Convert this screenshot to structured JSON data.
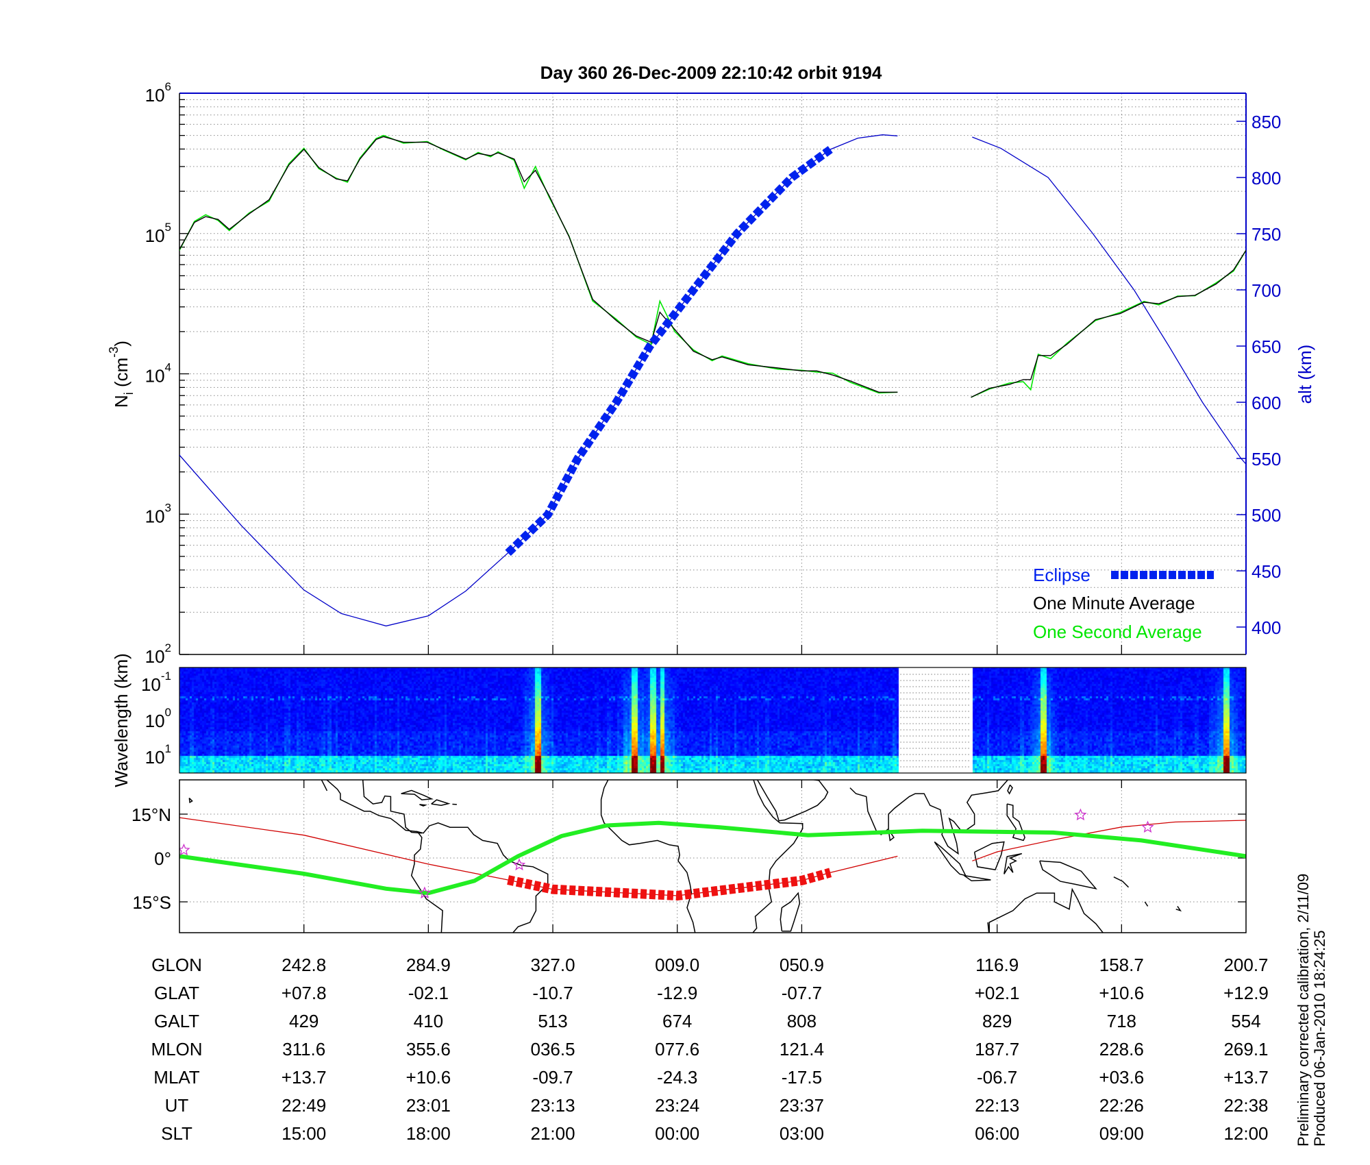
{
  "title": "Day 360  26-Dec-2009 22:10:42   orbit 9194",
  "side_notes": [
    "Preliminary corrected calibration, 2/11/09",
    "Produced 06-Jan-2010 18:24:25"
  ],
  "colors": {
    "one_minute": "#000000",
    "one_second": "#00e600",
    "altitude": "#0000c8",
    "eclipse": "#0022ee",
    "track": "#d00000",
    "track_eclipse": "#ee1111",
    "dip_equator": "#22ee22",
    "stars": "#cc33cc",
    "right_axis": "#0000c8"
  },
  "x_ticks": [
    1,
    2,
    3,
    4,
    5,
    6.57,
    7.57,
    8.57
  ],
  "chart_data": [
    {
      "type": "line",
      "ylabel": {
        "base": "N",
        "sub": "i",
        "rest": " (cm",
        "exp": "-3",
        "close": ")"
      },
      "yscale": "log",
      "ylim": [
        100,
        1000000
      ],
      "yticks": [
        {
          "m": "10",
          "e": "6"
        },
        {
          "m": "10",
          "e": "5"
        },
        {
          "m": "10",
          "e": "4"
        },
        {
          "m": "10",
          "e": "3"
        },
        {
          "m": "10",
          "e": "2"
        }
      ],
      "y2label": "alt (km)",
      "y2lim": [
        376,
        875
      ],
      "y2ticks": [
        "850",
        "800",
        "750",
        "700",
        "650",
        "600",
        "550",
        "500",
        "450",
        "400"
      ],
      "grid": true,
      "legend": {
        "placement": "bottom-right",
        "entries": [
          "Eclipse",
          "One Minute Average",
          "One Second Average"
        ]
      },
      "series": [
        {
          "name": "One Minute Average",
          "segments": [
            [
              [
                0,
                77000
              ],
              [
                0.12,
                120000
              ],
              [
                0.21,
                132000
              ],
              [
                0.31,
                126000
              ],
              [
                0.4,
                107000
              ],
              [
                0.56,
                138000
              ],
              [
                0.72,
                174000
              ],
              [
                0.88,
                309000
              ],
              [
                1.0,
                398000
              ],
              [
                1.12,
                295000
              ],
              [
                1.26,
                245000
              ],
              [
                1.35,
                237000
              ],
              [
                1.45,
                339000
              ],
              [
                1.58,
                468000
              ],
              [
                1.64,
                490000
              ],
              [
                1.8,
                447000
              ],
              [
                1.99,
                447000
              ],
              [
                2.12,
                398000
              ],
              [
                2.3,
                339000
              ],
              [
                2.4,
                372000
              ],
              [
                2.5,
                359000
              ],
              [
                2.56,
                376000
              ],
              [
                2.69,
                339000
              ],
              [
                2.77,
                234000
              ],
              [
                2.86,
                282000
              ],
              [
                2.97,
                186000
              ],
              [
                3.13,
                95000
              ],
              [
                3.32,
                33900
              ],
              [
                3.51,
                24000
              ],
              [
                3.67,
                18600
              ],
              [
                3.79,
                16800
              ],
              [
                3.86,
                27500
              ],
              [
                3.98,
                20700
              ],
              [
                4.13,
                14500
              ],
              [
                4.28,
                12600
              ],
              [
                4.36,
                13200
              ],
              [
                4.57,
                11600
              ],
              [
                4.81,
                11000
              ],
              [
                5.0,
                10500
              ],
              [
                5.12,
                10500
              ],
              [
                5.25,
                9800
              ],
              [
                5.39,
                8900
              ],
              [
                5.62,
                7400
              ],
              [
                5.77,
                7400
              ]
            ],
            [
              [
                6.36,
                6800
              ],
              [
                6.51,
                7900
              ],
              [
                6.67,
                8400
              ],
              [
                6.78,
                9100
              ],
              [
                6.84,
                9100
              ],
              [
                6.9,
                13500
              ],
              [
                7.0,
                13500
              ],
              [
                7.13,
                16200
              ],
              [
                7.36,
                24300
              ],
              [
                7.56,
                26900
              ],
              [
                7.75,
                32400
              ],
              [
                7.87,
                31600
              ],
              [
                8.02,
                35500
              ],
              [
                8.16,
                36300
              ],
              [
                8.33,
                43700
              ],
              [
                8.47,
                55000
              ],
              [
                8.57,
                76000
              ]
            ]
          ]
        },
        {
          "name": "One Second Average",
          "segments": [
            [
              [
                0,
                76000
              ],
              [
                0.12,
                122000
              ],
              [
                0.21,
                136000
              ],
              [
                0.31,
                124000
              ],
              [
                0.4,
                105000
              ],
              [
                0.56,
                140000
              ],
              [
                0.72,
                170000
              ],
              [
                0.88,
                315000
              ],
              [
                1.0,
                405000
              ],
              [
                1.12,
                290000
              ],
              [
                1.26,
                248000
              ],
              [
                1.35,
                232000
              ],
              [
                1.45,
                345000
              ],
              [
                1.58,
                475000
              ],
              [
                1.64,
                500000
              ],
              [
                1.8,
                440000
              ],
              [
                1.99,
                452000
              ],
              [
                2.12,
                395000
              ],
              [
                2.3,
                335000
              ],
              [
                2.4,
                378000
              ],
              [
                2.5,
                352000
              ],
              [
                2.56,
                382000
              ],
              [
                2.69,
                333000
              ],
              [
                2.77,
                210000
              ],
              [
                2.86,
                300000
              ],
              [
                2.97,
                182000
              ],
              [
                3.13,
                96000
              ],
              [
                3.32,
                33000
              ],
              [
                3.51,
                24500
              ],
              [
                3.67,
                18300
              ],
              [
                3.79,
                16200
              ],
              [
                3.86,
                33000
              ],
              [
                3.98,
                20000
              ],
              [
                4.13,
                14800
              ],
              [
                4.28,
                12400
              ],
              [
                4.36,
                13400
              ],
              [
                4.57,
                11800
              ],
              [
                4.81,
                10800
              ],
              [
                5.0,
                10600
              ],
              [
                5.12,
                10300
              ],
              [
                5.25,
                10100
              ],
              [
                5.39,
                8700
              ],
              [
                5.62,
                7300
              ],
              [
                5.77,
                7400
              ]
            ],
            [
              [
                6.36,
                6800
              ],
              [
                6.51,
                7800
              ],
              [
                6.67,
                8600
              ],
              [
                6.78,
                8800
              ],
              [
                6.84,
                7700
              ],
              [
                6.9,
                13800
              ],
              [
                7.0,
                12800
              ],
              [
                7.13,
                16500
              ],
              [
                7.36,
                24000
              ],
              [
                7.56,
                27400
              ],
              [
                7.75,
                32800
              ],
              [
                7.87,
                31000
              ],
              [
                8.02,
                35800
              ],
              [
                8.16,
                36000
              ],
              [
                8.33,
                44500
              ],
              [
                8.47,
                54000
              ],
              [
                8.57,
                76000
              ]
            ]
          ]
        },
        {
          "name": "alt",
          "axis": "right",
          "segments": [
            [
              [
                0,
                553
              ],
              [
                0.5,
                490
              ],
              [
                1.0,
                433
              ],
              [
                1.3,
                412
              ],
              [
                1.66,
                401
              ],
              [
                2.0,
                410
              ],
              [
                2.3,
                432
              ],
              [
                2.64,
                466
              ],
              [
                2.96,
                500
              ],
              [
                3.2,
                550
              ],
              [
                3.51,
                600
              ],
              [
                3.78,
                650
              ],
              [
                4.13,
                700
              ],
              [
                4.48,
                750
              ],
              [
                4.92,
                800
              ],
              [
                5.23,
                825
              ],
              [
                5.45,
                835
              ],
              [
                5.65,
                838
              ],
              [
                5.77,
                837
              ]
            ],
            [
              [
                6.37,
                836
              ],
              [
                6.6,
                826
              ],
              [
                6.98,
                800
              ],
              [
                7.34,
                750
              ],
              [
                7.67,
                700
              ],
              [
                7.95,
                650
              ],
              [
                8.22,
                600
              ],
              [
                8.53,
                550
              ],
              [
                8.57,
                545
              ]
            ]
          ]
        }
      ],
      "eclipse_range": [
        2.64,
        5.23
      ]
    },
    {
      "type": "heatmap",
      "ylabel": "Wavelength (km)",
      "yscale": "log",
      "yticks": [
        {
          "m": "10",
          "e": "-1"
        },
        {
          "m": "10",
          "e": "0"
        },
        {
          "m": "10",
          "e": "1"
        }
      ],
      "data_gap": [
        5.77,
        6.37
      ],
      "bright_events": [
        2.87,
        3.65,
        3.8,
        3.87,
        6.93,
        8.4
      ],
      "colormap": "jet"
    },
    {
      "type": "map",
      "lon_range": [
        200.7,
        560.7
      ],
      "lat_range": [
        -25.5,
        26.7
      ],
      "yticks": [
        "15°N",
        "0°",
        "15°S"
      ],
      "track": [
        [
          [
            0,
            13.8
          ],
          [
            1,
            7.8
          ],
          [
            2,
            -2.1
          ],
          [
            2.64,
            -7.5
          ],
          [
            3,
            -10.7
          ],
          [
            4,
            -12.9
          ],
          [
            5,
            -7.7
          ],
          [
            5.23,
            -5.0
          ],
          [
            5.77,
            0.6
          ]
        ],
        [
          [
            6.37,
            -1.0
          ],
          [
            6.57,
            2.1
          ],
          [
            7.0,
            6.0
          ],
          [
            7.57,
            10.6
          ],
          [
            8.0,
            12.3
          ],
          [
            8.57,
            12.9
          ]
        ]
      ],
      "dip_equator": [
        [
          0,
          0.6
        ],
        [
          1,
          -5.4
        ],
        [
          1.66,
          -10.5
        ],
        [
          2,
          -12
        ],
        [
          2.37,
          -7.8
        ],
        [
          2.72,
          0.6
        ],
        [
          3.07,
          7.5
        ],
        [
          3.43,
          11.1
        ],
        [
          3.85,
          12
        ],
        [
          4.34,
          10.5
        ],
        [
          5.05,
          7.8
        ],
        [
          5.97,
          9.3
        ],
        [
          7.02,
          8.7
        ],
        [
          7.73,
          6
        ],
        [
          8.57,
          0.6
        ]
      ],
      "stars": [
        [
          0.035,
          2.7
        ],
        [
          1.97,
          -12
        ],
        [
          2.73,
          -2.4
        ],
        [
          7.24,
          14.7
        ],
        [
          7.78,
          10.5
        ]
      ]
    }
  ],
  "table": {
    "rows": [
      {
        "label": "GLON",
        "values": [
          "242.8",
          "284.9",
          "327.0",
          "009.0",
          "050.9",
          "116.9",
          "158.7",
          "200.7"
        ]
      },
      {
        "label": "GLAT",
        "values": [
          "+07.8",
          "-02.1",
          "-10.7",
          "-12.9",
          "-07.7",
          "+02.1",
          "+10.6",
          "+12.9"
        ]
      },
      {
        "label": "GALT",
        "values": [
          "429",
          "410",
          "513",
          "674",
          "808",
          "829",
          "718",
          "554"
        ]
      },
      {
        "label": "MLON",
        "values": [
          "311.6",
          "355.6",
          "036.5",
          "077.6",
          "121.4",
          "187.7",
          "228.6",
          "269.1"
        ]
      },
      {
        "label": "MLAT",
        "values": [
          "+13.7",
          "+10.6",
          "-09.7",
          "-24.3",
          "-17.5",
          "-06.7",
          "+03.6",
          "+13.7"
        ]
      },
      {
        "label": "UT",
        "values": [
          "22:49",
          "23:01",
          "23:13",
          "23:24",
          "23:37",
          "22:13",
          "22:26",
          "22:38"
        ]
      },
      {
        "label": "SLT",
        "values": [
          "15:00",
          "18:00",
          "21:00",
          "00:00",
          "03:00",
          "06:00",
          "09:00",
          "12:00"
        ]
      }
    ]
  }
}
